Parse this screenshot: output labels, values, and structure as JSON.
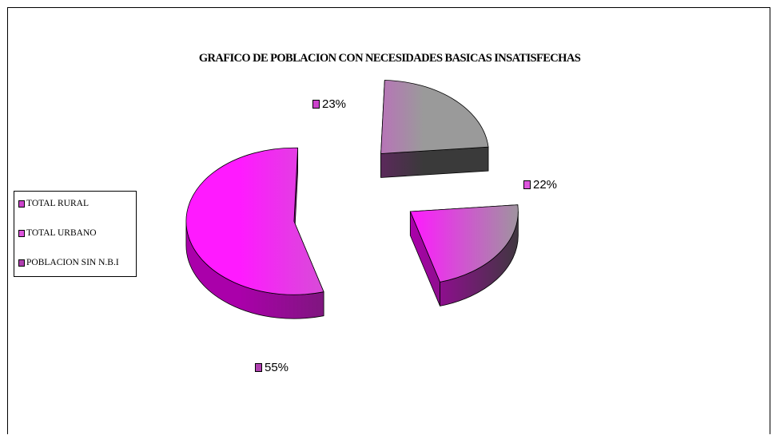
{
  "chart_data": {
    "type": "pie",
    "title": "GRAFICO DE POBLACION CON NECESIDADES BASICAS INSATISFECHAS",
    "three_d": true,
    "exploded": true,
    "categories": [
      "TOTAL RURAL",
      "TOTAL URBANO",
      "POBLACION SIN N.B.I"
    ],
    "values": [
      23,
      22,
      55
    ],
    "data_labels": [
      "23%",
      "22%",
      "55%"
    ],
    "legend_position": "left",
    "colors": {
      "slice_light": "#ff1aff",
      "slice_gray": "#9a9a9a",
      "side_dark": "#3a3a3a",
      "side_purple": "#990099",
      "swatches": [
        "#cc44cc",
        "#dd55dd",
        "#b040b0"
      ]
    }
  }
}
